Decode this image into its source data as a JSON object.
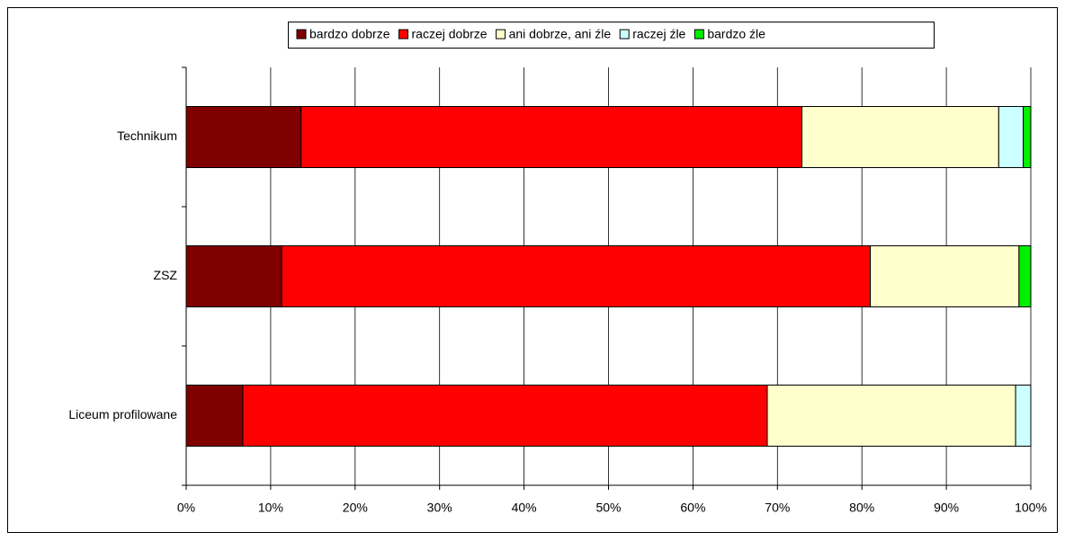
{
  "chart_data": {
    "type": "stacked_barh",
    "categories": [
      "Technikum",
      "ZSZ",
      "Liceum profilowane"
    ],
    "series": [
      {
        "name": "bardzo dobrze",
        "color": "#800000",
        "values": [
          13.6,
          11.3,
          6.7
        ]
      },
      {
        "name": "raczej dobrze",
        "color": "#ff0000",
        "values": [
          59.3,
          69.7,
          62.1
        ]
      },
      {
        "name": "ani dobrze, ani źle",
        "color": "#ffffcc",
        "values": [
          23.3,
          17.6,
          29.4
        ]
      },
      {
        "name": "raczej źle",
        "color": "#ccffff",
        "values": [
          2.9,
          0,
          1.8
        ]
      },
      {
        "name": "bardzo źle",
        "color": "#00ee00",
        "values": [
          0.9,
          1.4,
          0
        ]
      }
    ],
    "xlim": [
      0,
      100
    ],
    "xticks": [
      {
        "value": 0,
        "label": "0%"
      },
      {
        "value": 10,
        "label": "10%"
      },
      {
        "value": 20,
        "label": "20%"
      },
      {
        "value": 30,
        "label": "30%"
      },
      {
        "value": 40,
        "label": "40%"
      },
      {
        "value": 50,
        "label": "50%"
      },
      {
        "value": 60,
        "label": "60%"
      },
      {
        "value": 70,
        "label": "70%"
      },
      {
        "value": 80,
        "label": "80%"
      },
      {
        "value": 90,
        "label": "90%"
      },
      {
        "value": 100,
        "label": "100%"
      }
    ],
    "grid": true,
    "legend": "top"
  }
}
